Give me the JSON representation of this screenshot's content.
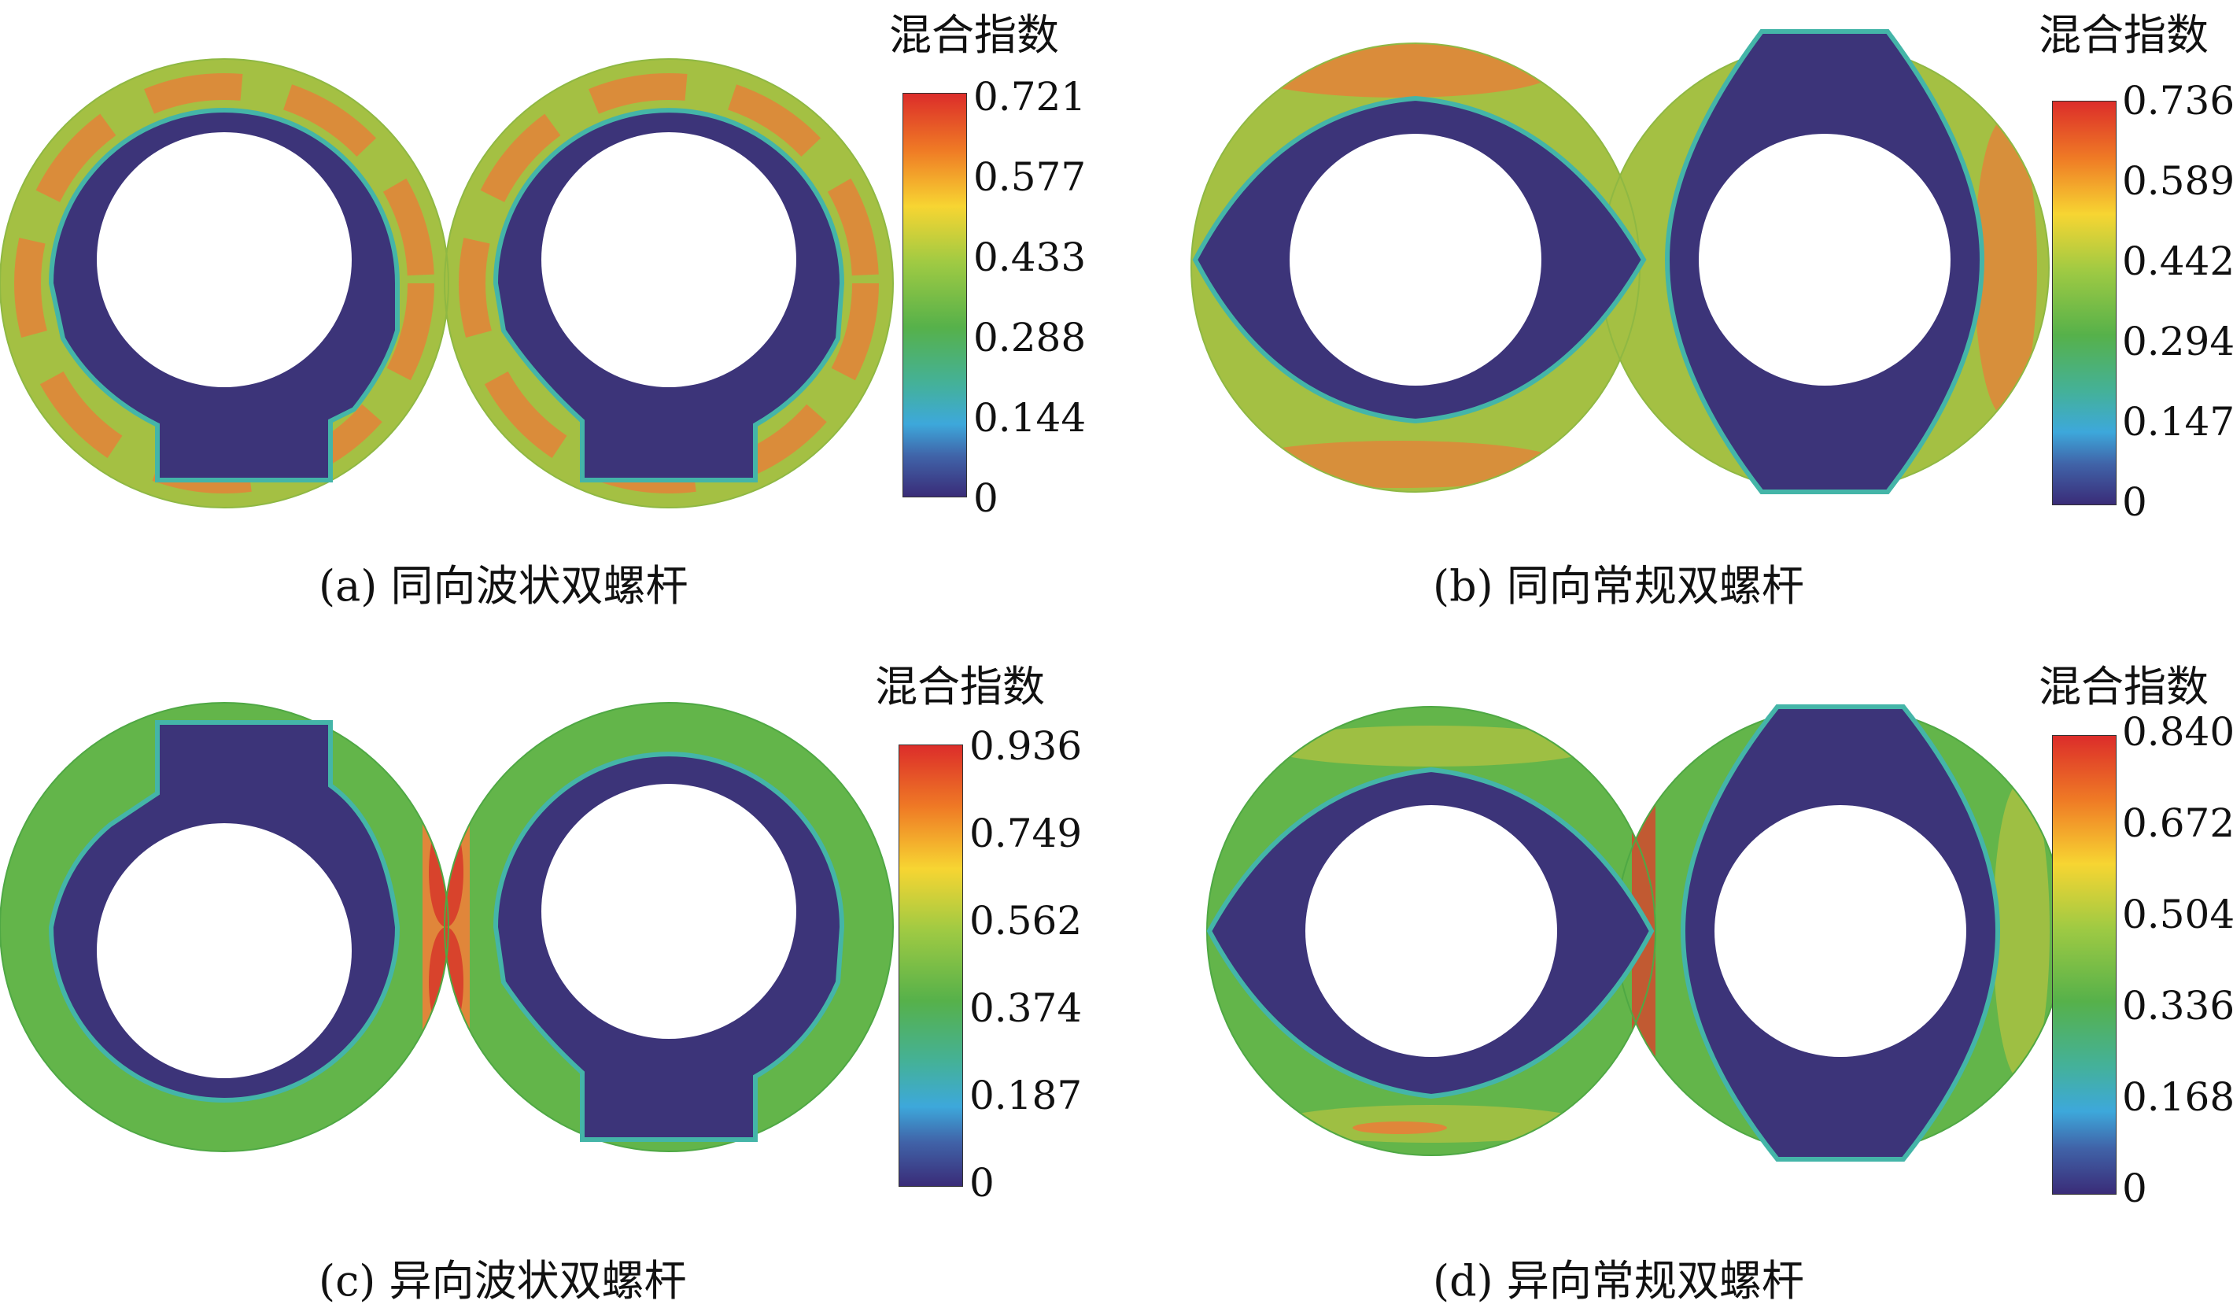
{
  "colorbar_title": "混合指数",
  "colors": {
    "low": "#3c3479",
    "base_green": "#63b54a",
    "yellow_green": "#a4c043",
    "orange": "#e0863a",
    "red": "#d8432c",
    "teal_edge": "#44b5a8",
    "hole": "#ffffff"
  },
  "panels": [
    {
      "id": "a",
      "caption": "(a) 同向波状双螺杆",
      "ticks": [
        "0.721",
        "0.577",
        "0.433",
        "0.288",
        "0.144",
        "0"
      ],
      "max": 0.721,
      "rotation": "co-rotating",
      "profile": "wavy"
    },
    {
      "id": "b",
      "caption": "(b) 同向常规双螺杆",
      "ticks": [
        "0.736",
        "0.589",
        "0.442",
        "0.294",
        "0.147",
        "0"
      ],
      "max": 0.736,
      "rotation": "co-rotating",
      "profile": "conventional"
    },
    {
      "id": "c",
      "caption": "(c) 异向波状双螺杆",
      "ticks": [
        "0.936",
        "0.749",
        "0.562",
        "0.374",
        "0.187",
        "0"
      ],
      "max": 0.936,
      "rotation": "counter-rotating",
      "profile": "wavy"
    },
    {
      "id": "d",
      "caption": "(d) 异向常规双螺杆",
      "ticks": [
        "0.840",
        "0.672",
        "0.504",
        "0.336",
        "0.168",
        "0"
      ],
      "max": 0.84,
      "rotation": "counter-rotating",
      "profile": "conventional"
    }
  ]
}
